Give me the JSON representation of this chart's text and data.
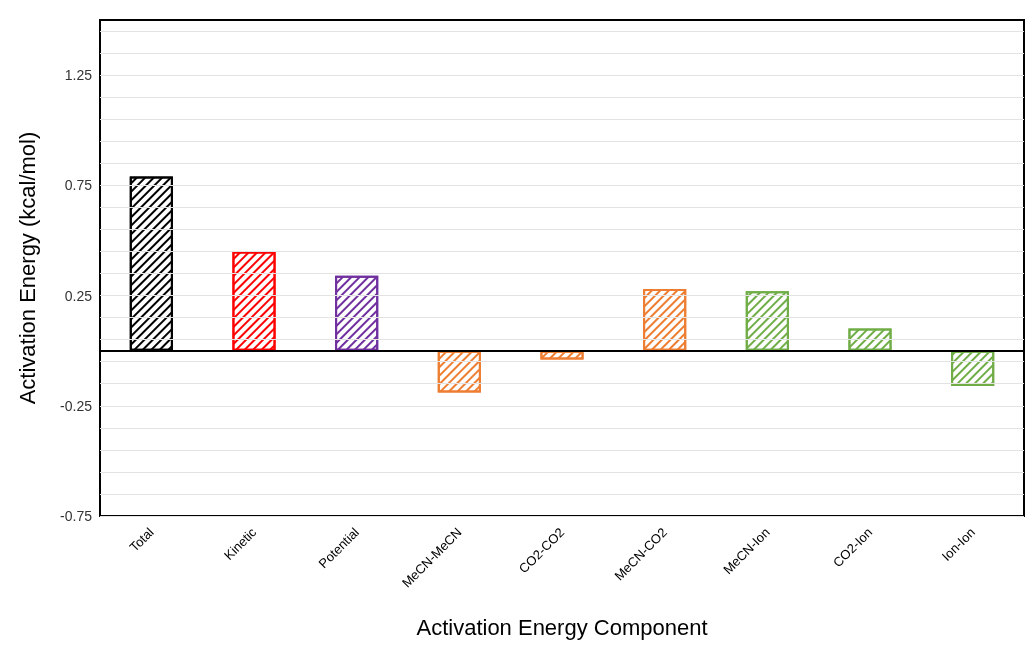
{
  "chart_data": {
    "type": "bar",
    "xlabel": "Activation Energy Component",
    "ylabel": "Activation Energy (kcal/mol)",
    "categories": [
      "Total",
      "Kinetic",
      "Potential",
      "MeCN-MeCN",
      "CO2-CO2",
      "MeCN-CO2",
      "MeCN-Ion",
      "CO2-Ion",
      "Ion-Ion"
    ],
    "values": [
      0.79,
      0.45,
      0.34,
      -0.19,
      -0.04,
      0.28,
      0.27,
      0.1,
      -0.16
    ],
    "colors": [
      "#000000",
      "#ff0000",
      "#7030a0",
      "#ed7d31",
      "#ed7d31",
      "#ed7d31",
      "#70ad47",
      "#70ad47",
      "#70ad47"
    ],
    "ylim": [
      -0.75,
      1.5
    ],
    "yticks": [
      -0.75,
      {
        "value": -0.65,
        "label": null
      },
      {
        "value": -0.55,
        "label": null
      },
      {
        "value": -0.45,
        "label": null
      },
      {
        "value": -0.35,
        "label": null
      },
      -0.25,
      {
        "value": -0.15,
        "label": null
      },
      {
        "value": -0.05,
        "label": null
      },
      {
        "value": 0.05,
        "label": null
      },
      {
        "value": 0.15,
        "label": null
      },
      0.25,
      {
        "value": 0.35,
        "label": null
      },
      {
        "value": 0.45,
        "label": null
      },
      {
        "value": 0.55,
        "label": null
      },
      {
        "value": 0.65,
        "label": null
      },
      0.75,
      {
        "value": 0.85,
        "label": null
      },
      {
        "value": 0.95,
        "label": null
      },
      {
        "value": 1.05,
        "label": null
      },
      {
        "value": 1.15,
        "label": null
      },
      1.25,
      {
        "value": 1.35,
        "label": null
      },
      {
        "value": 1.45,
        "label": null
      }
    ],
    "ref_lines": [
      {
        "axis": "y",
        "value": 0,
        "color": "#000000"
      }
    ],
    "grid": "y"
  }
}
